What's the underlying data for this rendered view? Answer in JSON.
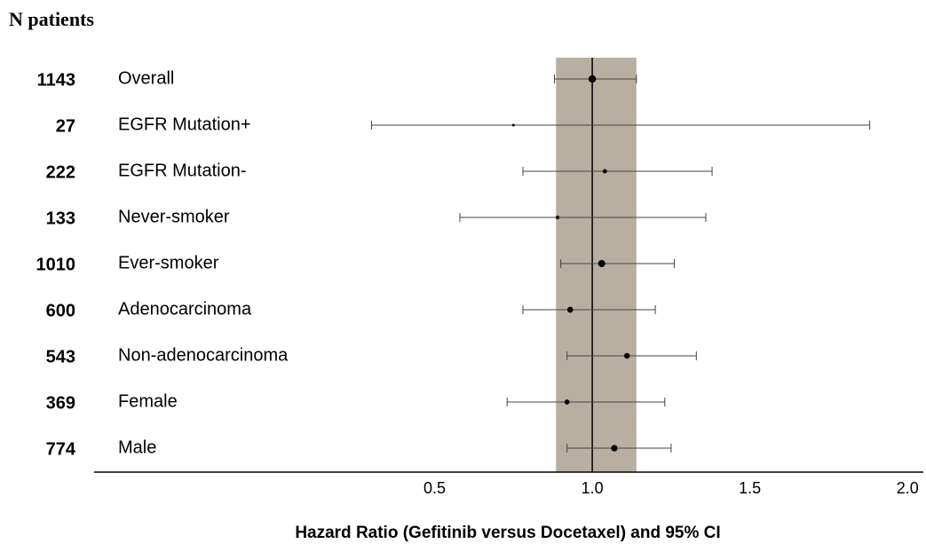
{
  "chart_data": {
    "type": "forest",
    "title": "N patients",
    "xlabel": "Hazard Ratio (Gefitinib versus Docetaxel) and 95% CI",
    "categories": [
      "Overall",
      "EGFR Mutation+",
      "EGFR Mutation-",
      "Never-smoker",
      "Ever-smoker",
      "Adenocarcinoma",
      "Non-adenocarcinoma",
      "Female",
      "Male"
    ],
    "n": [
      1143,
      27,
      222,
      133,
      1010,
      600,
      543,
      369,
      774
    ],
    "values": [
      1.0,
      0.75,
      1.04,
      0.89,
      1.03,
      0.93,
      1.11,
      0.92,
      1.07
    ],
    "lower": [
      0.88,
      0.3,
      0.78,
      0.58,
      0.9,
      0.78,
      0.92,
      0.73,
      0.92
    ],
    "upper": [
      1.14,
      1.88,
      1.38,
      1.36,
      1.26,
      1.2,
      1.33,
      1.23,
      1.25
    ],
    "band": [
      0.885,
      1.14
    ],
    "band_color": "#b8afa2",
    "reference_line": 1,
    "color": "#000000",
    "xlim": [
      -0.58,
      2.05
    ],
    "xticks": [
      {
        "value": 0.5,
        "label": "0.5"
      },
      {
        "value": 1,
        "label": "1.0"
      },
      {
        "value": 1.5,
        "label": "1.5"
      },
      {
        "value": 2,
        "label": "2.0"
      }
    ]
  }
}
